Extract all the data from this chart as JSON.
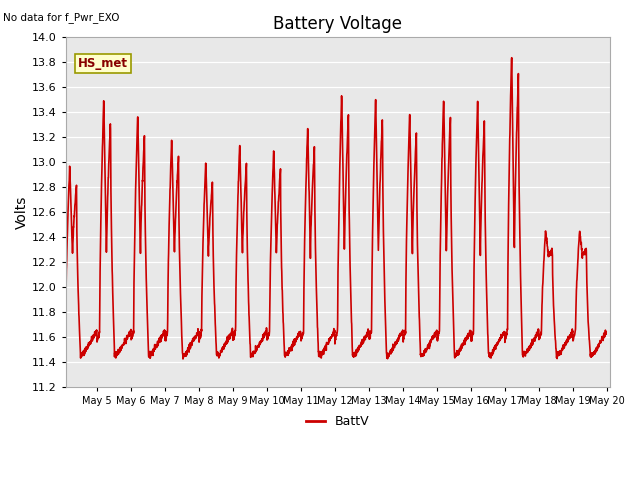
{
  "title": "Battery Voltage",
  "no_data_text": "No data for f_Pwr_EXO",
  "ylabel": "Volts",
  "ylim": [
    11.2,
    14.0
  ],
  "yticks": [
    11.2,
    11.4,
    11.6,
    11.8,
    12.0,
    12.2,
    12.4,
    12.6,
    12.8,
    13.0,
    13.2,
    13.4,
    13.6,
    13.8,
    14.0
  ],
  "line_color": "#cc0000",
  "line_width": 1.2,
  "plot_bg": "#e8e8e8",
  "fig_bg": "#ffffff",
  "legend_label": "BattV",
  "hs_met_label": "HS_met",
  "xtick_labels": [
    "May 5",
    "May 6",
    "May 7",
    "May 8",
    "May 9",
    "May 10",
    "May 11",
    "May 12",
    "May 13",
    "May 14",
    "May 15",
    "May 16",
    "May 17",
    "May 18",
    "May 19",
    "May 20"
  ],
  "xlim": [
    4.08,
    20.1
  ],
  "peaks": {
    "4": 12.98,
    "5": 13.5,
    "6": 13.38,
    "7": 13.2,
    "8": 13.0,
    "9": 13.15,
    "10": 13.1,
    "11": 13.28,
    "12": 13.55,
    "13": 13.52,
    "14": 13.4,
    "15": 13.52,
    "16": 13.5,
    "17": 13.88,
    "18": 12.45,
    "19": 12.45
  },
  "base_min": 11.45,
  "mid_level": 12.25
}
